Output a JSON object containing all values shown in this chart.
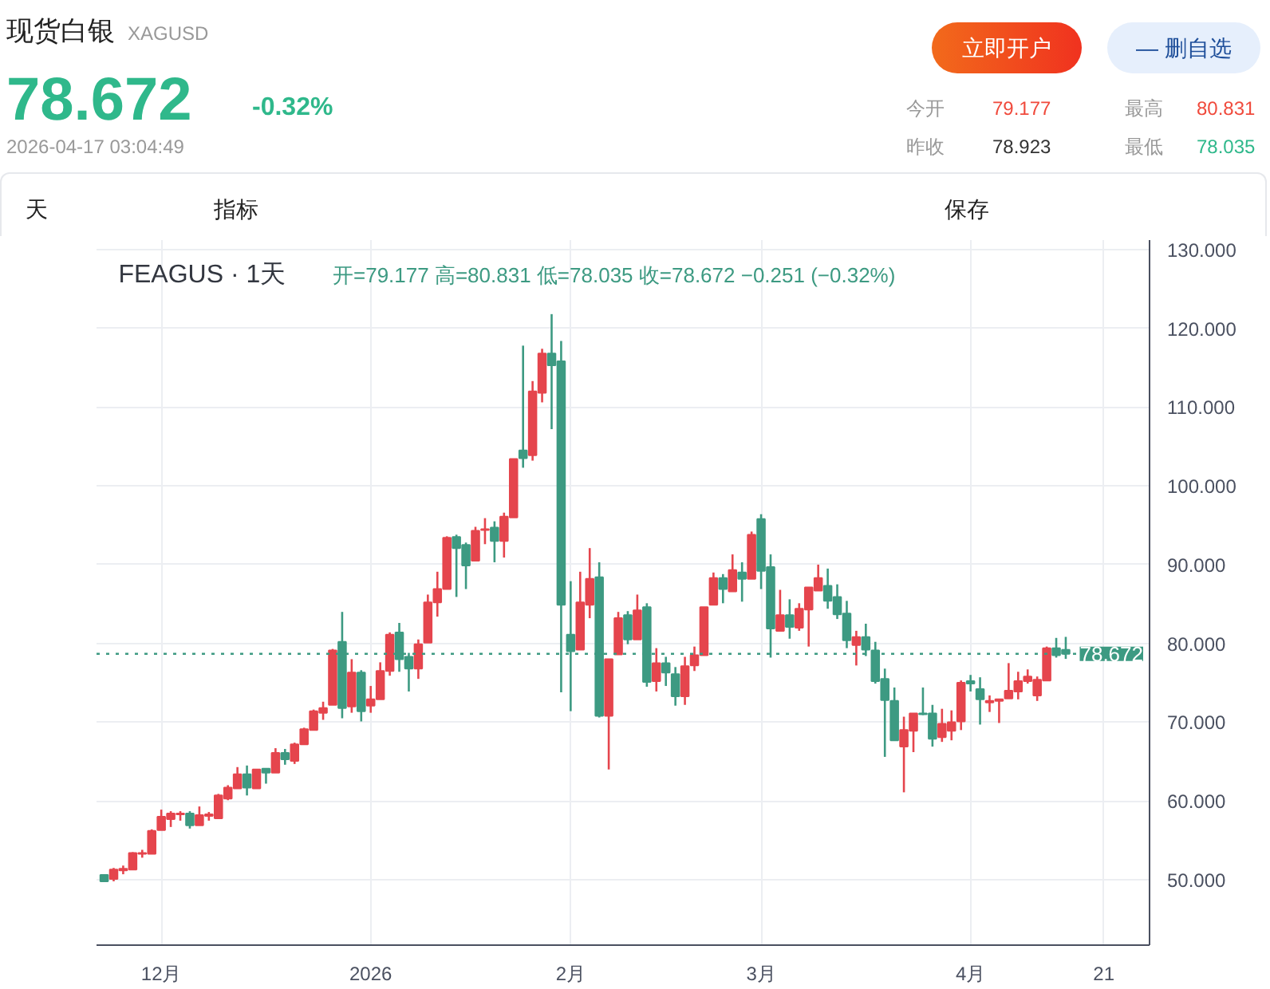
{
  "chart_data": {
    "type": "candlestick",
    "title": "现货白银",
    "subtitle": "XAGUSD",
    "annotations": [
      "78.672",
      "-0.32%",
      "2026-04-17 03:04:49",
      "今开",
      "79.177",
      "最高",
      "80.831",
      "昨收",
      "78.923",
      "最低",
      "78.035",
      "立即开户",
      "— 删自选",
      "天",
      "指标",
      "保存",
      "FEAGUS · 1天",
      "开=79.177 高=80.831 低=78.035 收=78.672 −0.251 (−0.32%)"
    ],
    "categories": [
      null,
      null,
      null,
      null,
      null,
      null,
      "12月",
      null,
      null,
      null,
      null,
      null,
      null,
      null,
      null,
      null,
      null,
      null,
      null,
      null,
      null,
      null,
      null,
      null,
      null,
      null,
      null,
      null,
      "2026",
      null,
      null,
      null,
      null,
      null,
      null,
      null,
      null,
      null,
      null,
      null,
      null,
      null,
      null,
      null,
      null,
      null,
      null,
      null,
      null,
      "2月",
      null,
      null,
      null,
      null,
      null,
      null,
      null,
      null,
      null,
      null,
      null,
      null,
      null,
      null,
      null,
      null,
      null,
      null,
      null,
      "3月",
      null,
      null,
      null,
      null,
      null,
      null,
      null,
      null,
      null,
      null,
      null,
      null,
      null,
      null,
      null,
      null,
      null,
      null,
      null,
      null,
      null,
      "4月",
      null,
      null,
      null,
      null,
      null,
      null,
      null,
      null,
      null,
      null,
      null,
      null,
      null,
      "21",
      null,
      null,
      null,
      null
    ],
    "ohlc": [
      [
        50.6,
        50.6,
        49.8,
        49.8
      ],
      [
        50.1,
        51.5,
        49.8,
        51.3
      ],
      [
        51.2,
        51.8,
        50.7,
        51.4
      ],
      [
        51.3,
        53.5,
        51.3,
        53.4
      ],
      [
        53.3,
        53.8,
        52.8,
        53.4
      ],
      [
        53.3,
        56.4,
        53.3,
        56.2
      ],
      [
        56.3,
        58.9,
        56.3,
        58.0
      ],
      [
        57.7,
        58.7,
        56.7,
        58.4
      ],
      [
        58.3,
        58.7,
        57.5,
        58.4
      ],
      [
        58.4,
        58.7,
        56.5,
        56.9
      ],
      [
        56.9,
        59.3,
        56.9,
        58.2
      ],
      [
        58.1,
        58.6,
        57.5,
        58.3
      ],
      [
        57.8,
        60.9,
        57.7,
        60.7
      ],
      [
        60.3,
        62.0,
        60.1,
        61.7
      ],
      [
        61.6,
        64.3,
        61.6,
        63.4
      ],
      [
        63.4,
        64.5,
        60.7,
        61.7
      ],
      [
        61.6,
        64.0,
        61.6,
        64.0
      ],
      [
        64.1,
        64.1,
        62.2,
        63.6
      ],
      [
        63.6,
        66.7,
        63.6,
        66.1
      ],
      [
        66.1,
        66.6,
        64.6,
        65.3
      ],
      [
        65.1,
        67.4,
        64.7,
        67.2
      ],
      [
        67.2,
        69.3,
        67.2,
        69.1
      ],
      [
        69.0,
        71.6,
        69.0,
        71.4
      ],
      [
        71.2,
        72.6,
        70.3,
        71.8
      ],
      [
        72.2,
        79.3,
        72.2,
        79.1
      ],
      [
        80.2,
        84.0,
        70.5,
        71.8
      ],
      [
        72.0,
        78.0,
        71.2,
        76.3
      ],
      [
        76.3,
        76.6,
        70.1,
        71.4
      ],
      [
        72.1,
        74.6,
        71.2,
        72.9
      ],
      [
        72.9,
        77.6,
        72.9,
        76.5
      ],
      [
        76.5,
        81.4,
        75.9,
        81.1
      ],
      [
        81.4,
        82.6,
        76.4,
        78.0
      ],
      [
        78.3,
        78.8,
        73.9,
        76.8
      ],
      [
        76.8,
        80.5,
        75.5,
        79.9
      ],
      [
        80.1,
        86.2,
        80.1,
        85.2
      ],
      [
        85.2,
        89.1,
        83.4,
        86.9
      ],
      [
        86.9,
        93.6,
        86.9,
        93.4
      ],
      [
        93.5,
        93.8,
        85.9,
        92.1
      ],
      [
        92.5,
        92.8,
        86.9,
        89.9
      ],
      [
        90.5,
        94.8,
        90.5,
        94.3
      ],
      [
        94.4,
        95.9,
        92.6,
        94.5
      ],
      [
        94.7,
        95.5,
        90.3,
        93.0
      ],
      [
        93.0,
        96.6,
        90.9,
        96.1
      ],
      [
        96.0,
        103.4,
        96.0,
        103.4
      ],
      [
        104.5,
        117.8,
        102.3,
        103.5
      ],
      [
        103.9,
        113.3,
        103.2,
        112.0
      ],
      [
        111.8,
        117.4,
        110.6,
        116.8
      ],
      [
        116.8,
        121.8,
        107.2,
        115.3
      ],
      [
        115.8,
        118.4,
        73.8,
        84.9
      ],
      [
        81.1,
        87.9,
        71.4,
        79.0
      ],
      [
        79.2,
        89.1,
        79.2,
        85.2
      ],
      [
        84.9,
        92.1,
        83.2,
        88.2
      ],
      [
        88.4,
        90.3,
        70.6,
        70.8
      ],
      [
        70.8,
        78.0,
        64.0,
        78.0
      ],
      [
        78.6,
        84.0,
        78.6,
        83.2
      ],
      [
        83.6,
        84.1,
        79.9,
        80.5
      ],
      [
        80.5,
        86.2,
        80.5,
        84.2
      ],
      [
        84.6,
        85.1,
        74.5,
        75.1
      ],
      [
        75.2,
        79.4,
        73.9,
        77.5
      ],
      [
        77.5,
        78.3,
        74.6,
        76.3
      ],
      [
        76.1,
        77.0,
        72.1,
        73.3
      ],
      [
        73.3,
        78.3,
        72.2,
        77.1
      ],
      [
        77.2,
        79.6,
        76.5,
        78.5
      ],
      [
        78.5,
        84.6,
        78.5,
        84.6
      ],
      [
        84.9,
        89.0,
        84.9,
        88.3
      ],
      [
        88.3,
        88.8,
        85.1,
        86.9
      ],
      [
        86.6,
        91.3,
        86.6,
        89.3
      ],
      [
        89.0,
        90.3,
        85.3,
        88.2
      ],
      [
        88.2,
        94.2,
        88.2,
        93.8
      ],
      [
        95.8,
        96.4,
        86.9,
        89.2
      ],
      [
        89.7,
        91.3,
        78.2,
        81.9
      ],
      [
        81.6,
        86.8,
        81.6,
        83.6
      ],
      [
        83.6,
        85.6,
        80.6,
        82.1
      ],
      [
        82.0,
        85.1,
        81.6,
        84.4
      ],
      [
        84.3,
        87.1,
        79.6,
        87.1
      ],
      [
        86.7,
        90.0,
        86.7,
        88.3
      ],
      [
        87.3,
        89.5,
        84.4,
        85.4
      ],
      [
        85.9,
        87.5,
        83.1,
        83.7
      ],
      [
        83.8,
        85.4,
        79.4,
        80.4
      ],
      [
        79.8,
        81.6,
        77.2,
        80.8
      ],
      [
        80.8,
        82.5,
        78.4,
        79.2
      ],
      [
        79.1,
        80.2,
        74.9,
        75.2
      ],
      [
        75.5,
        76.8,
        65.6,
        72.8
      ],
      [
        72.7,
        74.4,
        67.7,
        67.7
      ],
      [
        66.9,
        70.7,
        61.1,
        69.0
      ],
      [
        68.9,
        71.1,
        66.2,
        71.1
      ],
      [
        71.1,
        74.4,
        70.9,
        71.0
      ],
      [
        71.1,
        72.2,
        66.9,
        67.9
      ],
      [
        68.1,
        71.7,
        67.5,
        69.8
      ],
      [
        68.9,
        71.5,
        67.7,
        70.0
      ],
      [
        70.1,
        75.3,
        69.0,
        75.0
      ],
      [
        75.2,
        76.0,
        73.9,
        74.9
      ],
      [
        74.2,
        75.7,
        69.7,
        72.9
      ],
      [
        72.5,
        73.4,
        71.3,
        72.7
      ],
      [
        72.7,
        72.9,
        69.9,
        72.9
      ],
      [
        73.0,
        77.5,
        73.0,
        74.0
      ],
      [
        73.9,
        76.4,
        72.9,
        75.2
      ],
      [
        75.2,
        76.7,
        74.9,
        75.8
      ],
      [
        73.4,
        75.8,
        72.7,
        75.4
      ],
      [
        75.3,
        79.6,
        75.3,
        79.4
      ],
      [
        79.4,
        80.7,
        78.2,
        78.5
      ],
      [
        79.177,
        80.831,
        78.035,
        78.672
      ],
      null,
      null,
      null,
      null,
      null,
      null,
      null,
      null
    ],
    "ylim": [
      41.7,
      131.2
    ],
    "yticks": [
      {
        "value": 50,
        "label": "50.000"
      },
      {
        "value": 60,
        "label": "60.000"
      },
      {
        "value": 70,
        "label": "70.000"
      },
      {
        "value": 80,
        "label": "80.000"
      },
      {
        "value": 90,
        "label": "90.000"
      },
      {
        "value": 100,
        "label": "100.000"
      },
      {
        "value": 110,
        "label": "110.000"
      },
      {
        "value": 120,
        "label": "120.000"
      },
      {
        "value": 130,
        "label": "130.000"
      }
    ],
    "ref_lines": [
      {
        "axis": "y",
        "value": 78.672,
        "label": "78.672",
        "color": "#3d9a82",
        "line_style": "dotted"
      }
    ],
    "grid": true
  }
}
